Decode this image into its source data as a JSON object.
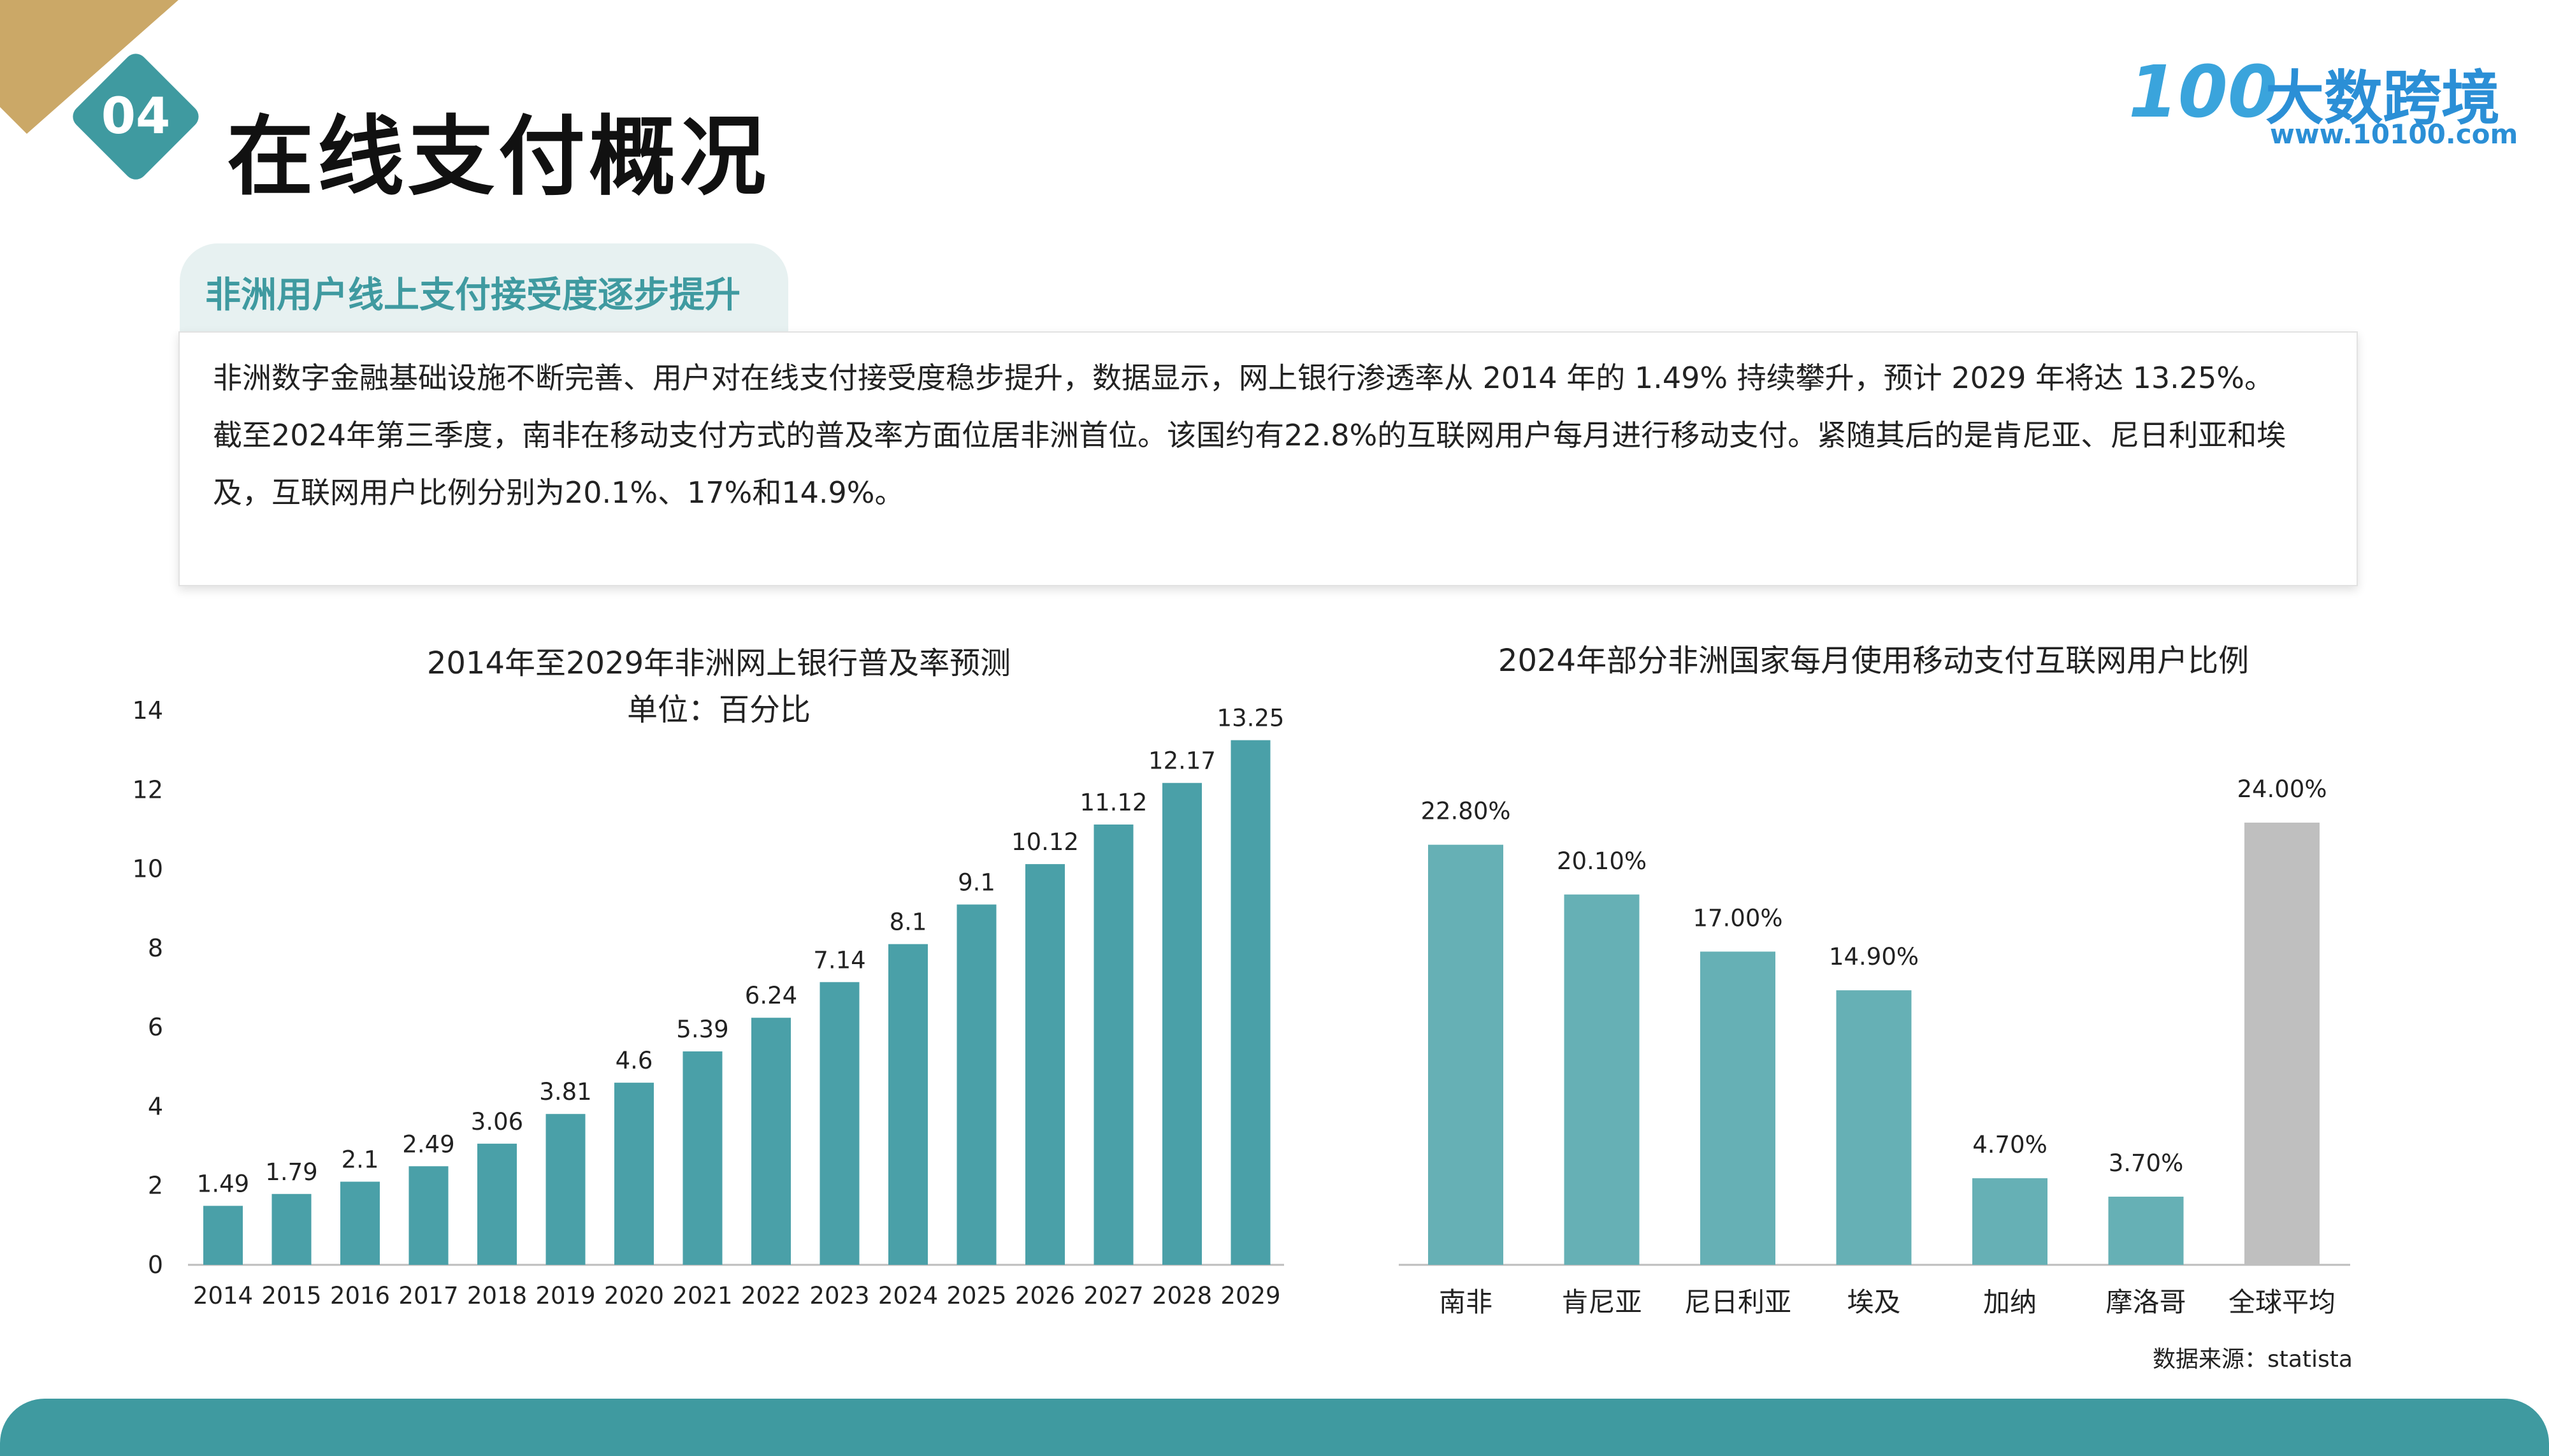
{
  "header": {
    "badge_number": "04",
    "title": "在线支付概况",
    "logo": {
      "mark": "100",
      "name": "大数跨境",
      "url": "www.10100.com"
    }
  },
  "section": {
    "tab_label": "非洲用户线上支付接受度逐步提升",
    "paragraphs": [
      "非洲数字金融基础设施不断完善、用户对在线支付接受度稳步提升，数据显示，网上银行渗透率从 2014 年的 1.49% 持续攀升，预计 2029 年将达 13.25%。",
      "截至2024年第三季度，南非在移动支付方式的普及率方面位居非洲首位。该国约有22.8%的互联网用户每月进行移动支付。紧随其后的是肯尼亚、尼日利亚和埃及，互联网用户比例分别为20.1%、17%和14.9%。"
    ]
  },
  "source_note": "数据来源：statista",
  "colors": {
    "accent": "#3f9aa0",
    "bar_left": "#4aa0a8",
    "bar_right": "#66b0b5",
    "bar_gray": "#bfbfbf",
    "gold": "#cba867"
  },
  "chart_data": [
    {
      "type": "bar",
      "title": "2014年至2029年非洲网上银行普及率预测",
      "subtitle": "单位：百分比",
      "categories": [
        "2014",
        "2015",
        "2016",
        "2017",
        "2018",
        "2019",
        "2020",
        "2021",
        "2022",
        "2023",
        "2024",
        "2025",
        "2026",
        "2027",
        "2028",
        "2029"
      ],
      "values": [
        1.49,
        1.79,
        2.1,
        2.49,
        3.06,
        3.81,
        4.6,
        5.39,
        6.24,
        7.14,
        8.1,
        9.1,
        10.12,
        11.12,
        12.17,
        13.25
      ],
      "value_labels": [
        "1.49",
        "1.79",
        "2.1",
        "2.49",
        "3.06",
        "3.81",
        "4.6",
        "5.39",
        "6.24",
        "7.14",
        "8.1",
        "9.1",
        "10.12",
        "11.12",
        "12.17",
        "13.25"
      ],
      "ylim": [
        0,
        14
      ],
      "yticks": [
        0,
        2,
        4,
        6,
        8,
        10,
        12,
        14
      ],
      "grid": false
    },
    {
      "type": "bar",
      "title": "2024年部分非洲国家每月使用移动支付互联网用户比例",
      "categories": [
        "南非",
        "肯尼亚",
        "尼日利亚",
        "埃及",
        "加纳",
        "摩洛哥",
        "全球平均"
      ],
      "values": [
        22.8,
        20.1,
        17.0,
        14.9,
        4.7,
        3.7,
        24.0
      ],
      "value_labels": [
        "22.80%",
        "20.10%",
        "17.00%",
        "14.90%",
        "4.70%",
        "3.70%",
        "24.00%"
      ],
      "ylim": [
        0,
        24
      ],
      "grid": false
    }
  ]
}
